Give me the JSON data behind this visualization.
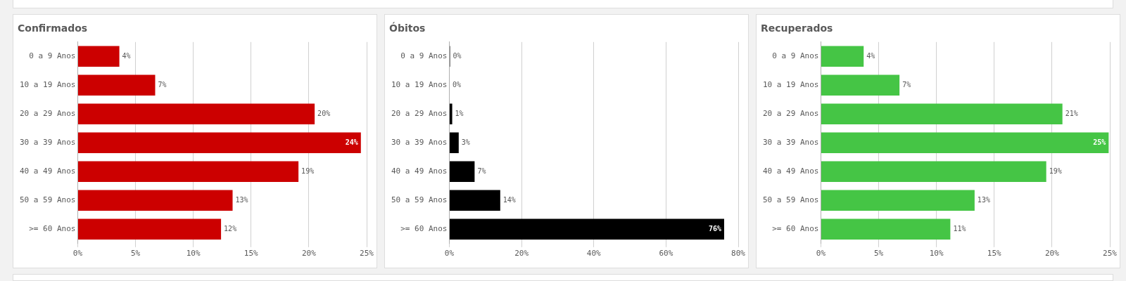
{
  "chart_data": [
    {
      "type": "bar",
      "orientation": "horizontal",
      "title": "Confirmados",
      "categories": [
        "0 a 9 Anos",
        "10 a 19 Anos",
        "20 a 29 Anos",
        "30 a 39 Anos",
        "40 a 49 Anos",
        "50 a 59 Anos",
        ">= 60 Anos"
      ],
      "values": [
        3.6,
        6.7,
        20.5,
        24.5,
        19.1,
        13.4,
        12.4
      ],
      "value_labels": [
        "4%",
        "7%",
        "20%",
        "24%",
        "19%",
        "13%",
        "12%"
      ],
      "color": "#cc0000",
      "xlim": [
        0,
        25
      ],
      "xticks": [
        {
          "value": 0,
          "label": "0%"
        },
        {
          "value": 5,
          "label": "5%"
        },
        {
          "value": 10,
          "label": "10%"
        },
        {
          "value": 15,
          "label": "15%"
        },
        {
          "value": 20,
          "label": "20%"
        },
        {
          "value": 25,
          "label": "25%"
        }
      ],
      "grid": "x",
      "legend": false
    },
    {
      "type": "bar",
      "orientation": "horizontal",
      "title": "Óbitos",
      "categories": [
        "0 a 9 Anos",
        "10 a 19 Anos",
        "20 a 29 Anos",
        "30 a 39 Anos",
        "40 a 49 Anos",
        "50 a 59 Anos",
        ">= 60 Anos"
      ],
      "values": [
        0.2,
        0.1,
        0.8,
        2.6,
        7.0,
        14.1,
        76.1
      ],
      "value_labels": [
        "0%",
        "0%",
        "1%",
        "3%",
        "7%",
        "14%",
        "76%"
      ],
      "color": "#000000",
      "xlim": [
        0,
        80
      ],
      "xticks": [
        {
          "value": 0,
          "label": "0%"
        },
        {
          "value": 20,
          "label": "20%"
        },
        {
          "value": 40,
          "label": "40%"
        },
        {
          "value": 60,
          "label": "60%"
        },
        {
          "value": 80,
          "label": "80%"
        }
      ],
      "grid": "x",
      "legend": false
    },
    {
      "type": "bar",
      "orientation": "horizontal",
      "title": "Recuperados",
      "categories": [
        "0 a 9 Anos",
        "10 a 19 Anos",
        "20 a 29 Anos",
        "30 a 39 Anos",
        "40 a 49 Anos",
        "50 a 59 Anos",
        ">= 60 Anos"
      ],
      "values": [
        3.7,
        6.8,
        20.9,
        24.9,
        19.5,
        13.3,
        11.2
      ],
      "value_labels": [
        "4%",
        "7%",
        "21%",
        "25%",
        "19%",
        "13%",
        "11%"
      ],
      "color": "#45c545",
      "xlim": [
        0,
        25
      ],
      "xticks": [
        {
          "value": 0,
          "label": "0%"
        },
        {
          "value": 5,
          "label": "5%"
        },
        {
          "value": 10,
          "label": "10%"
        },
        {
          "value": 15,
          "label": "15%"
        },
        {
          "value": 20,
          "label": "20%"
        },
        {
          "value": 25,
          "label": "25%"
        }
      ],
      "grid": "x",
      "legend": false
    }
  ]
}
